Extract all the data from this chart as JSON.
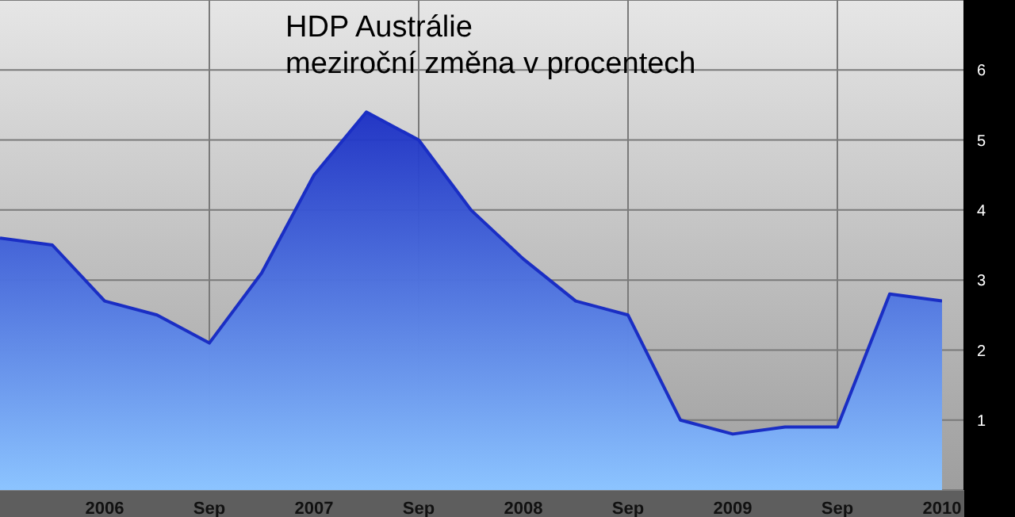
{
  "chart_data": {
    "type": "area",
    "title": "HDP Austrálie",
    "subtitle": "meziroční změna v procentech",
    "categories": [
      null,
      null,
      "2006",
      null,
      "Sep",
      null,
      "2007",
      null,
      "Sep",
      null,
      "2008",
      null,
      "Sep",
      null,
      "2009",
      null,
      "Sep",
      null,
      "2010"
    ],
    "series": [
      {
        "color": "#1a2ec4",
        "values": [
          3.6,
          3.5,
          2.7,
          2.5,
          2.1,
          3.1,
          4.5,
          5.4,
          5.0,
          4.0,
          3.3,
          2.7,
          2.5,
          1.0,
          0.8,
          0.9,
          0.9,
          2.8,
          2.7
        ]
      }
    ],
    "ylim": [
      0,
      7
    ],
    "yticks": [
      1,
      2,
      3,
      4,
      5,
      6
    ],
    "grid": true
  }
}
